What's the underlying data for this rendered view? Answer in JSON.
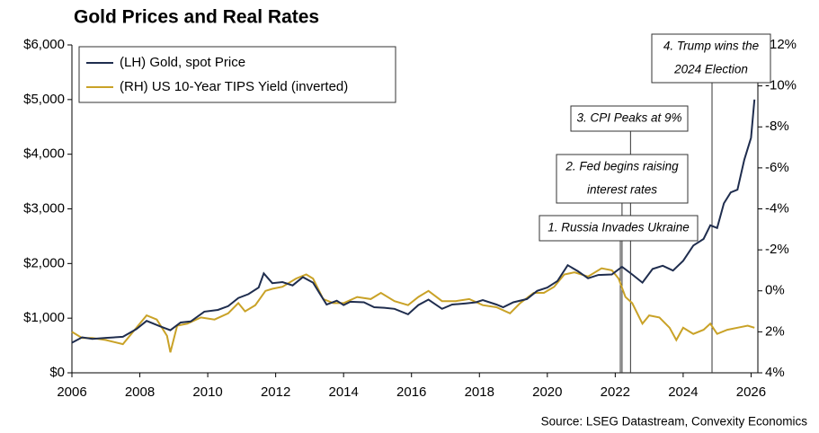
{
  "chart_data": {
    "type": "line",
    "title": "Gold Prices and Real Rates",
    "source": "Source: LSEG Datastream, Convexity Economics",
    "xlim": [
      2006,
      2026.2
    ],
    "xticks": [
      2006,
      2008,
      2010,
      2012,
      2014,
      2016,
      2018,
      2020,
      2022,
      2024,
      2026
    ],
    "ylim": [
      0,
      6000
    ],
    "yticks": [
      {
        "value": 0,
        "label": "$0"
      },
      {
        "value": 1000,
        "label": "$1,000"
      },
      {
        "value": 2000,
        "label": "$2,000"
      },
      {
        "value": 3000,
        "label": "$3,000"
      },
      {
        "value": 4000,
        "label": "$4,000"
      },
      {
        "value": 5000,
        "label": "$5,000"
      },
      {
        "value": 6000,
        "label": "$6,000"
      }
    ],
    "y2lim": [
      4,
      -12
    ],
    "y2ticks": [
      {
        "value": 4,
        "label": "4%"
      },
      {
        "value": 2,
        "label": "2%"
      },
      {
        "value": 0,
        "label": "0%"
      },
      {
        "value": -2,
        "label": "-2%"
      },
      {
        "value": -4,
        "label": "-4%"
      },
      {
        "value": -6,
        "label": "-6%"
      },
      {
        "value": -8,
        "label": "-8%"
      },
      {
        "value": -10,
        "label": "-10%"
      },
      {
        "value": -12,
        "label": "-12%"
      }
    ],
    "legend": "upper left",
    "series": [
      {
        "name": "(LH) Gold, spot Price",
        "color": "#1f2d4e",
        "x": [
          2006.0,
          2006.3,
          2006.6,
          2007.0,
          2007.5,
          2007.9,
          2008.2,
          2008.6,
          2008.9,
          2009.2,
          2009.5,
          2009.9,
          2010.3,
          2010.6,
          2010.9,
          2011.2,
          2011.5,
          2011.65,
          2011.9,
          2012.2,
          2012.5,
          2012.8,
          2013.1,
          2013.3,
          2013.5,
          2013.8,
          2014.0,
          2014.2,
          2014.6,
          2014.9,
          2015.2,
          2015.5,
          2015.9,
          2016.2,
          2016.5,
          2016.9,
          2017.2,
          2017.6,
          2017.9,
          2018.1,
          2018.5,
          2018.7,
          2019.0,
          2019.4,
          2019.7,
          2020.0,
          2020.3,
          2020.6,
          2020.9,
          2021.2,
          2021.5,
          2021.9,
          2022.2,
          2022.5,
          2022.8,
          2023.1,
          2023.4,
          2023.7,
          2024.0,
          2024.3,
          2024.6,
          2024.8,
          2025.0,
          2025.2,
          2025.4,
          2025.6,
          2025.8,
          2026.0,
          2026.1
        ],
        "values": [
          550,
          650,
          620,
          640,
          660,
          800,
          950,
          850,
          780,
          920,
          940,
          1120,
          1150,
          1220,
          1370,
          1440,
          1560,
          1820,
          1640,
          1660,
          1600,
          1750,
          1650,
          1450,
          1250,
          1320,
          1240,
          1300,
          1290,
          1200,
          1190,
          1170,
          1070,
          1240,
          1340,
          1170,
          1250,
          1270,
          1290,
          1330,
          1250,
          1200,
          1290,
          1350,
          1500,
          1560,
          1680,
          1970,
          1860,
          1730,
          1790,
          1800,
          1940,
          1800,
          1650,
          1900,
          1960,
          1870,
          2050,
          2330,
          2450,
          2700,
          2650,
          3100,
          3300,
          3350,
          3900,
          4300,
          5000
        ]
      },
      {
        "name": "(RH) US 10-Year TIPS Yield (inverted)",
        "color": "#c9a227",
        "axis": "y2",
        "x": [
          2006.0,
          2006.3,
          2006.6,
          2007.0,
          2007.5,
          2007.9,
          2008.2,
          2008.5,
          2008.8,
          2008.9,
          2009.1,
          2009.4,
          2009.8,
          2010.2,
          2010.6,
          2010.9,
          2011.1,
          2011.4,
          2011.7,
          2011.9,
          2012.2,
          2012.6,
          2012.9,
          2013.1,
          2013.4,
          2013.7,
          2014.0,
          2014.4,
          2014.8,
          2015.1,
          2015.5,
          2015.9,
          2016.2,
          2016.5,
          2016.9,
          2017.3,
          2017.7,
          2018.1,
          2018.5,
          2018.9,
          2019.2,
          2019.6,
          2019.9,
          2020.2,
          2020.5,
          2020.8,
          2021.2,
          2021.6,
          2021.9,
          2022.1,
          2022.3,
          2022.5,
          2022.8,
          2023.0,
          2023.3,
          2023.6,
          2023.8,
          2024.0,
          2024.3,
          2024.6,
          2024.8,
          2025.0,
          2025.3,
          2025.6,
          2025.9,
          2026.1
        ],
        "values": [
          2.0,
          2.3,
          2.3,
          2.4,
          2.6,
          1.8,
          1.2,
          1.4,
          2.2,
          3.0,
          1.7,
          1.6,
          1.3,
          1.4,
          1.1,
          0.6,
          1.0,
          0.7,
          0.0,
          -0.1,
          -0.2,
          -0.6,
          -0.8,
          -0.6,
          0.4,
          0.6,
          0.6,
          0.3,
          0.4,
          0.1,
          0.5,
          0.7,
          0.3,
          0.0,
          0.5,
          0.5,
          0.4,
          0.7,
          0.8,
          1.1,
          0.6,
          0.1,
          0.1,
          -0.2,
          -0.8,
          -0.9,
          -0.7,
          -1.1,
          -1.0,
          -0.6,
          0.3,
          0.6,
          1.6,
          1.2,
          1.3,
          1.8,
          2.4,
          1.8,
          2.1,
          1.9,
          1.6,
          2.1,
          1.9,
          1.8,
          1.7,
          1.8
        ]
      }
    ],
    "annotations": [
      {
        "x": 2022.15,
        "lines": [
          "1. Russia Invades Ukraine"
        ]
      },
      {
        "x": 2022.2,
        "lines": [
          "2. Fed begins raising",
          "interest rates"
        ]
      },
      {
        "x": 2022.45,
        "lines": [
          "3. CPI Peaks at 9%"
        ]
      },
      {
        "x": 2024.85,
        "lines": [
          "4. Trump wins the",
          "2024 Election"
        ]
      }
    ]
  }
}
